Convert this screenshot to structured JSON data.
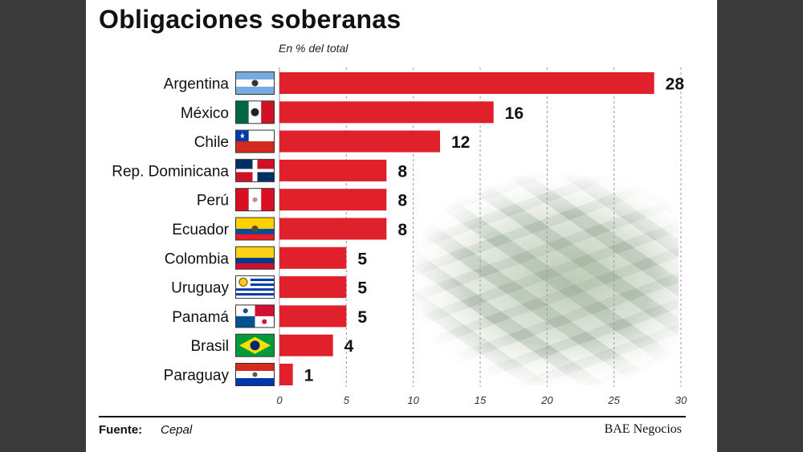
{
  "title": "Obligaciones soberanas",
  "subtitle": "En % del total",
  "source_label": "Fuente:",
  "source_value": "Cepal",
  "brand": "BAE Negocios",
  "colors": {
    "bar": "#e0202a",
    "grid": "#9a9a9a",
    "text": "#111111"
  },
  "chart_data": {
    "type": "bar",
    "orientation": "horizontal",
    "categories": [
      "Argentina",
      "México",
      "Chile",
      "Rep. Dominicana",
      "Perú",
      "Ecuador",
      "Colombia",
      "Uruguay",
      "Panamá",
      "Brasil",
      "Paraguay"
    ],
    "values": [
      28,
      16,
      12,
      8,
      8,
      8,
      5,
      5,
      5,
      4,
      1
    ],
    "flags": [
      "flag-argentina-icon",
      "flag-mexico-icon",
      "flag-chile-icon",
      "flag-dominican-republic-icon",
      "flag-peru-icon",
      "flag-ecuador-icon",
      "flag-colombia-icon",
      "flag-uruguay-icon",
      "flag-panama-icon",
      "flag-brazil-icon",
      "flag-paraguay-icon"
    ],
    "xticks": [
      0,
      5,
      10,
      15,
      20,
      25,
      30
    ],
    "xlim": [
      0,
      30
    ],
    "grid": "vertical dashed",
    "legend": "none"
  }
}
